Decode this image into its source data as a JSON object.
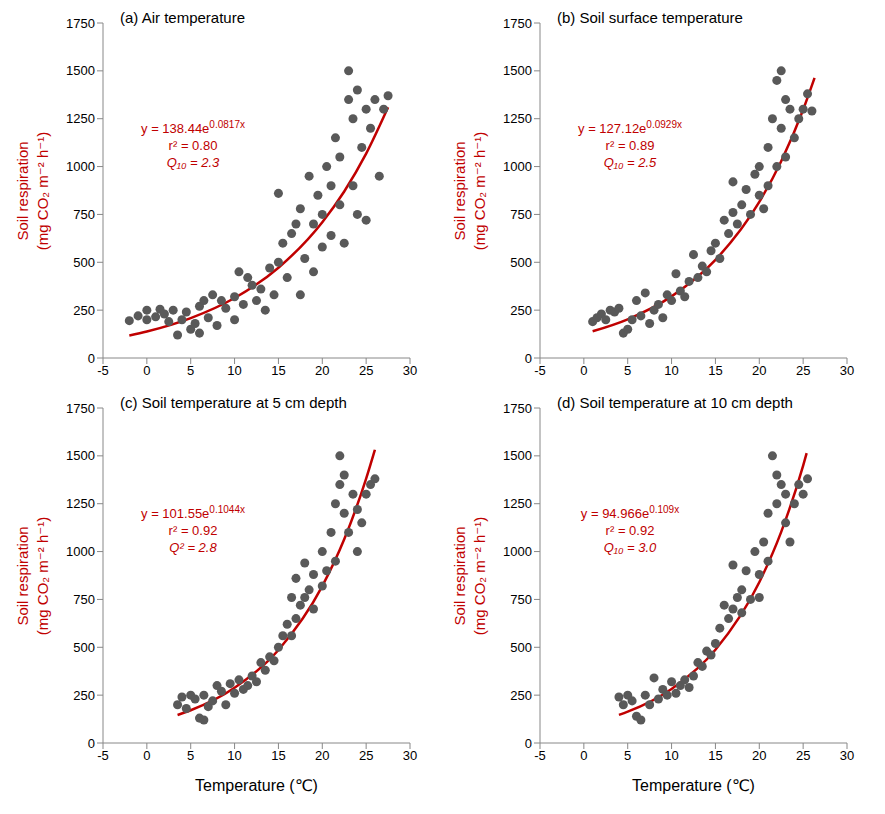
{
  "chart_data": [
    {
      "type": "scatter",
      "title": "(a) Air temperature",
      "y_label": [
        "Soil respiration",
        "(mg CO₂ m⁻² h⁻¹)"
      ],
      "xlim": [
        -5,
        30
      ],
      "xticks": [
        -5,
        0,
        5,
        10,
        15,
        20,
        25,
        30
      ],
      "ylim": [
        0,
        1750
      ],
      "yticks": [
        0,
        250,
        500,
        750,
        1000,
        1250,
        1500,
        1750
      ],
      "equation": [
        "y = 138.44e",
        "0.0817x"
      ],
      "r2": "r² = 0.80",
      "q10": "Q₁₀ = 2.3",
      "series": [
        {
          "type": "scatter",
          "marker": "circle",
          "color": "#595959",
          "x": [
            -2,
            -1,
            0,
            0,
            1,
            1.5,
            2,
            2.5,
            3,
            3.5,
            4,
            4.5,
            5,
            5.5,
            6,
            6,
            6.5,
            7,
            7.5,
            8,
            8.5,
            9,
            10,
            10,
            10.5,
            11,
            11.5,
            12,
            12.5,
            13,
            13.5,
            14,
            14.5,
            15,
            15,
            15.5,
            16,
            16.5,
            17,
            17.5,
            17.5,
            18,
            18.5,
            19,
            19,
            19.5,
            20,
            20,
            20.5,
            21,
            21,
            21.5,
            22,
            22,
            22.5,
            23,
            23,
            23.5,
            23.5,
            24,
            24,
            24.5,
            25,
            25,
            25.5,
            26,
            26.5,
            27,
            27.5
          ],
          "values": [
            195,
            220,
            200,
            250,
            215,
            255,
            230,
            190,
            250,
            120,
            200,
            240,
            150,
            180,
            130,
            270,
            300,
            210,
            330,
            170,
            300,
            260,
            200,
            320,
            450,
            280,
            420,
            380,
            300,
            360,
            250,
            470,
            330,
            860,
            500,
            600,
            420,
            650,
            700,
            330,
            780,
            520,
            950,
            450,
            700,
            850,
            750,
            580,
            1000,
            900,
            640,
            1150,
            800,
            1050,
            600,
            1350,
            1500,
            1250,
            900,
            1400,
            750,
            1100,
            1300,
            720,
            1200,
            1350,
            950,
            1300,
            1370
          ]
        },
        {
          "type": "line",
          "line_style": "solid",
          "color": "#c00000",
          "x": [
            -2,
            0,
            5,
            10,
            15,
            20,
            22.5,
            25,
            27.5
          ],
          "values": [
            117.6,
            138.4,
            208.4,
            313.4,
            471.5,
            709.4,
            870,
            1067.4,
            1309.5
          ]
        }
      ]
    },
    {
      "type": "scatter",
      "title": "(b) Soil surface temperature",
      "y_label": [
        "Soil respiration",
        "(mg CO₂ m⁻² h⁻¹)"
      ],
      "xlim": [
        -5,
        30
      ],
      "xticks": [
        -5,
        0,
        5,
        10,
        15,
        20,
        25,
        30
      ],
      "ylim": [
        0,
        1750
      ],
      "yticks": [
        0,
        250,
        500,
        750,
        1000,
        1250,
        1500,
        1750
      ],
      "equation": [
        "y = 127.12e",
        "0.0929x"
      ],
      "r2": "r² = 0.89",
      "q10": "Q₁₀ = 2.5",
      "series": [
        {
          "type": "scatter",
          "marker": "circle",
          "color": "#595959",
          "x": [
            1,
            1.5,
            2,
            2.5,
            3,
            3.5,
            4,
            4.5,
            5,
            5.5,
            6,
            6.5,
            7,
            7.5,
            8,
            8.5,
            9,
            9.5,
            10,
            10.5,
            11,
            11.5,
            12,
            12.5,
            13,
            13.5,
            14,
            14.5,
            15,
            15.5,
            16,
            16.5,
            17,
            17,
            17.5,
            18,
            18.5,
            19,
            19.5,
            20,
            20,
            20.5,
            21,
            21,
            21.5,
            22,
            22,
            22.5,
            22.5,
            23,
            23,
            23.5,
            24,
            24.5,
            25,
            25.5,
            26
          ],
          "values": [
            190,
            210,
            230,
            200,
            250,
            240,
            260,
            130,
            150,
            200,
            300,
            220,
            340,
            180,
            250,
            280,
            210,
            330,
            300,
            440,
            350,
            320,
            400,
            540,
            420,
            480,
            450,
            560,
            600,
            520,
            720,
            650,
            760,
            920,
            700,
            800,
            880,
            750,
            960,
            850,
            1000,
            780,
            1100,
            900,
            1250,
            1000,
            1450,
            1500,
            1200,
            1350,
            1050,
            1300,
            1150,
            1250,
            1300,
            1380,
            1290
          ]
        },
        {
          "type": "line",
          "line_style": "solid",
          "color": "#c00000",
          "x": [
            1,
            5,
            10,
            15,
            20,
            22.5,
            25,
            26.3
          ],
          "values": [
            139.5,
            202.2,
            321.9,
            512.2,
            815.1,
            1028,
            1296.8,
            1463
          ]
        }
      ]
    },
    {
      "type": "scatter",
      "title": "(c) Soil temperature at 5 cm depth",
      "y_label": [
        "Soil respiration",
        "(mg CO₂ m⁻² h⁻¹)"
      ],
      "x_label": "Temperature (℃)",
      "xlim": [
        -5,
        30
      ],
      "xticks": [
        -5,
        0,
        5,
        10,
        15,
        20,
        25,
        30
      ],
      "ylim": [
        0,
        1750
      ],
      "yticks": [
        0,
        250,
        500,
        750,
        1000,
        1250,
        1500,
        1750
      ],
      "equation": [
        "y = 101.55e",
        "0.1044x"
      ],
      "r2": "r² = 0.92",
      "q10": "Q² = 2.8",
      "series": [
        {
          "type": "scatter",
          "marker": "circle",
          "color": "#595959",
          "x": [
            3.5,
            4,
            4.5,
            5,
            5.5,
            6,
            6.5,
            6.5,
            7,
            7.5,
            8,
            8.5,
            9,
            9.5,
            10,
            10.5,
            11,
            11.5,
            12,
            12.5,
            13,
            13.5,
            14,
            14.5,
            15,
            15.5,
            16,
            16.5,
            16.5,
            17,
            17,
            17.5,
            18,
            18,
            18.5,
            19,
            19,
            20,
            20,
            20.5,
            21,
            21.5,
            21.5,
            22,
            22,
            22.5,
            22.5,
            23,
            23.5,
            24,
            24,
            24.5,
            25,
            25.5,
            26
          ],
          "values": [
            200,
            240,
            180,
            250,
            230,
            130,
            120,
            250,
            190,
            220,
            300,
            270,
            200,
            310,
            260,
            330,
            280,
            300,
            350,
            320,
            420,
            380,
            450,
            430,
            500,
            560,
            620,
            760,
            560,
            860,
            650,
            720,
            940,
            760,
            800,
            880,
            700,
            1000,
            820,
            900,
            1100,
            1250,
            950,
            1500,
            1350,
            1400,
            1200,
            1100,
            1300,
            1000,
            1220,
            1150,
            1300,
            1350,
            1380
          ]
        },
        {
          "type": "line",
          "line_style": "solid",
          "color": "#c00000",
          "x": [
            3.5,
            5,
            10,
            15,
            20,
            22.5,
            25,
            26
          ],
          "values": [
            146.4,
            171.1,
            288.5,
            486.1,
            819.4,
            1064,
            1381,
            1532
          ]
        }
      ]
    },
    {
      "type": "scatter",
      "title": "(d) Soil temperature at 10 cm depth",
      "y_label": [
        "Soil respiration",
        "(mg CO₂ m⁻² h⁻¹)"
      ],
      "x_label": "Temperature (℃)",
      "xlim": [
        -5,
        30
      ],
      "xticks": [
        -5,
        0,
        5,
        10,
        15,
        20,
        25,
        30
      ],
      "ylim": [
        0,
        1750
      ],
      "yticks": [
        0,
        250,
        500,
        750,
        1000,
        1250,
        1500,
        1750
      ],
      "equation": [
        "y = 94.966e",
        "0.109x"
      ],
      "r2": "r² = 0.92",
      "q10": "Q₁₀ = 3.0",
      "series": [
        {
          "type": "scatter",
          "marker": "circle",
          "color": "#595959",
          "x": [
            4,
            4.5,
            5,
            5.5,
            6,
            6.5,
            7,
            7.5,
            8,
            8.5,
            9,
            9.5,
            10,
            10.5,
            11,
            11.5,
            12,
            12.5,
            13,
            13.5,
            14,
            14.5,
            15,
            15.5,
            16,
            16.5,
            17,
            17,
            17.5,
            18,
            18,
            18.5,
            19,
            19.5,
            20,
            20,
            20.5,
            21,
            21,
            21.5,
            22,
            22,
            22.5,
            23,
            23,
            23.5,
            24,
            24.5,
            25,
            25.5
          ],
          "values": [
            240,
            200,
            250,
            220,
            140,
            120,
            250,
            200,
            340,
            230,
            280,
            250,
            320,
            260,
            300,
            330,
            290,
            350,
            420,
            400,
            480,
            460,
            520,
            600,
            720,
            650,
            930,
            700,
            760,
            800,
            680,
            900,
            750,
            1000,
            880,
            760,
            1050,
            1200,
            950,
            1500,
            1400,
            1250,
            1350,
            1150,
            1300,
            1050,
            1250,
            1350,
            1300,
            1380
          ]
        },
        {
          "type": "line",
          "line_style": "solid",
          "color": "#c00000",
          "x": [
            4,
            5,
            10,
            15,
            20,
            22.5,
            25,
            25.4
          ],
          "values": [
            146.9,
            163.8,
            282.5,
            487.1,
            840.1,
            1103,
            1449,
            1514
          ]
        }
      ]
    }
  ]
}
